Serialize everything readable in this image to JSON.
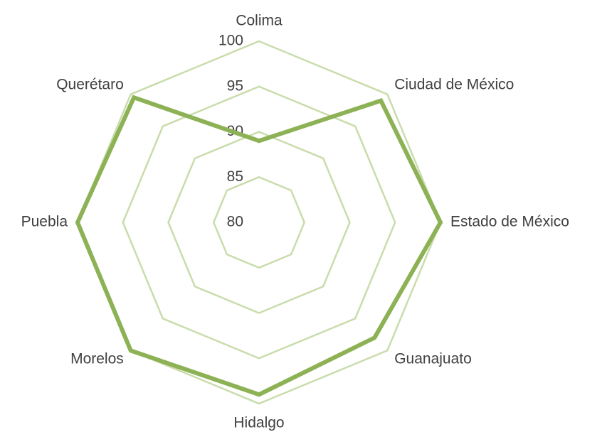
{
  "chart_data": {
    "type": "radar",
    "categories": [
      "Colima",
      "Ciudad de México",
      "Estado de México",
      "Guanajuato",
      "Hidalgo",
      "Morelos",
      "Puebla",
      "Querétaro"
    ],
    "series": [
      {
        "color": "#8db255",
        "values": [
          89,
          99,
          100,
          98,
          99,
          100,
          100,
          99.5
        ]
      }
    ],
    "rlim": [
      80,
      100
    ],
    "rticks": [
      80,
      85,
      90,
      95,
      100
    ],
    "grid": true,
    "grid_color": "#c9dcab"
  }
}
